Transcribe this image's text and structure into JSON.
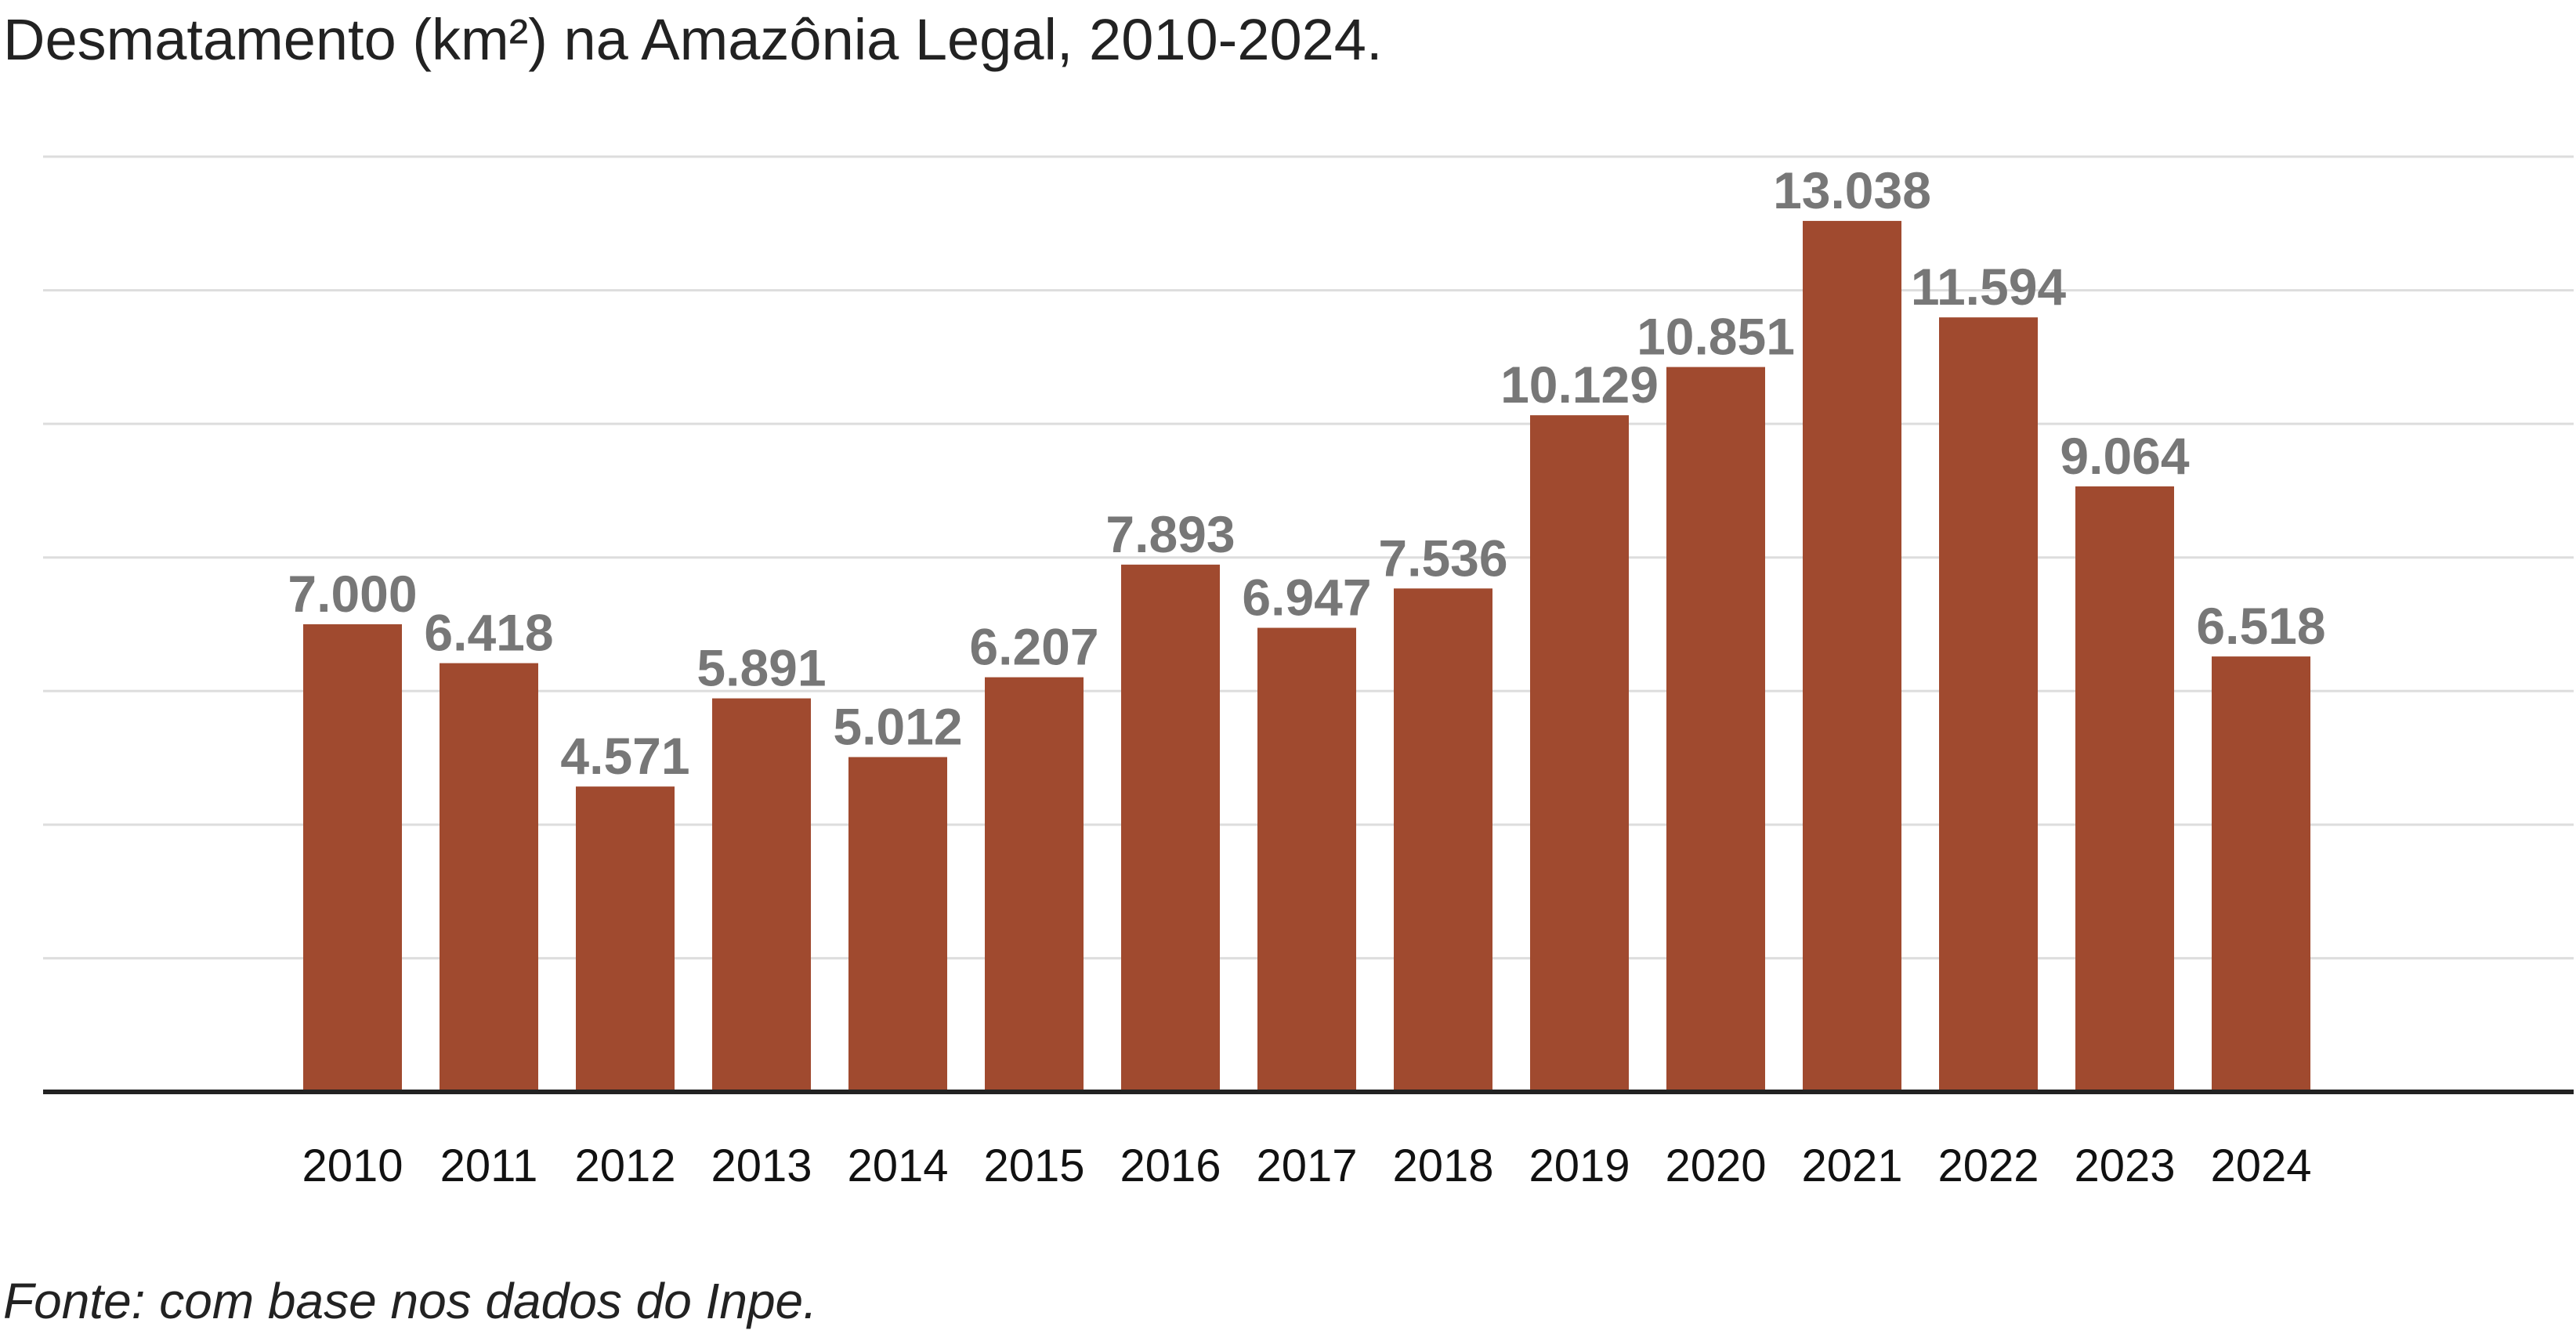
{
  "chart_data": {
    "type": "bar",
    "title": "Desmatamento (km²) na Amazônia Legal, 2010-2024.",
    "source": "Fonte: com base nos dados do Inpe.",
    "categories": [
      "2010",
      "2011",
      "2012",
      "2013",
      "2014",
      "2015",
      "2016",
      "2017",
      "2018",
      "2019",
      "2020",
      "2021",
      "2022",
      "2023",
      "2024"
    ],
    "values": [
      7000,
      6418,
      4571,
      5891,
      5012,
      6207,
      7893,
      6947,
      7536,
      10129,
      10851,
      13038,
      11594,
      9064,
      6518
    ],
    "value_labels": [
      "7.000",
      "6.418",
      "4.571",
      "5.891",
      "5.012",
      "6.207",
      "7.893",
      "6.947",
      "7.536",
      "10.129",
      "10.851",
      "13.038",
      "11.594",
      "9.064",
      "6.518"
    ],
    "xlabel": "",
    "ylabel": "",
    "ylim": [
      0,
      14000
    ],
    "gridlines": [
      2000,
      4000,
      6000,
      8000,
      10000,
      12000,
      14000
    ],
    "grid": true,
    "y_tick_labels_shown": false,
    "legend": "none",
    "bar_color": "#a04a2f",
    "value_label_color": "#777777",
    "grid_color": "#dddddd",
    "axis_color": "#222222"
  }
}
